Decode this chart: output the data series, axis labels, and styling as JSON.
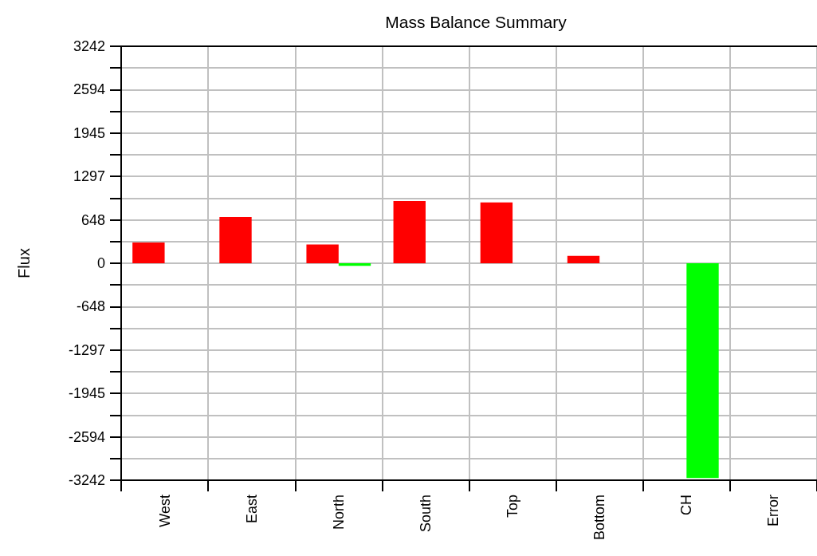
{
  "chart_data": {
    "type": "bar",
    "title": "Mass Balance Summary",
    "ylabel": "Flux",
    "categories": [
      "West",
      "East",
      "North",
      "South",
      "Top",
      "Bottom",
      "CH",
      "Error"
    ],
    "series": [
      {
        "color": "#ff0000",
        "values": [
          310,
          690,
          280,
          930,
          910,
          110,
          null,
          null
        ]
      },
      {
        "color": "#00ff00",
        "values": [
          null,
          null,
          -40,
          null,
          null,
          null,
          -3210,
          null
        ]
      }
    ],
    "ylim": [
      -3242,
      3242
    ],
    "yticks": [
      {
        "value": -3242,
        "label": "-3242"
      },
      {
        "value": -2917.8,
        "label": null
      },
      {
        "value": -2593.6,
        "label": "-2594"
      },
      {
        "value": -2269.4,
        "label": null
      },
      {
        "value": -1945.2,
        "label": "-1945"
      },
      {
        "value": -1621,
        "label": null
      },
      {
        "value": -1296.8,
        "label": "-1297"
      },
      {
        "value": -972.6,
        "label": null
      },
      {
        "value": -648.4,
        "label": "-648"
      },
      {
        "value": -324.2,
        "label": null
      },
      0,
      {
        "value": 324.2,
        "label": null
      },
      {
        "value": 648.4,
        "label": "648"
      },
      {
        "value": 972.6,
        "label": null
      },
      {
        "value": 1296.8,
        "label": "1297"
      },
      {
        "value": 1621,
        "label": null
      },
      {
        "value": 1945.2,
        "label": "1945"
      },
      {
        "value": 2269.4,
        "label": null
      },
      {
        "value": 2593.6,
        "label": "2594"
      },
      {
        "value": 2917.8,
        "label": null
      },
      {
        "value": 3242,
        "label": "3242"
      }
    ],
    "grid": true
  }
}
